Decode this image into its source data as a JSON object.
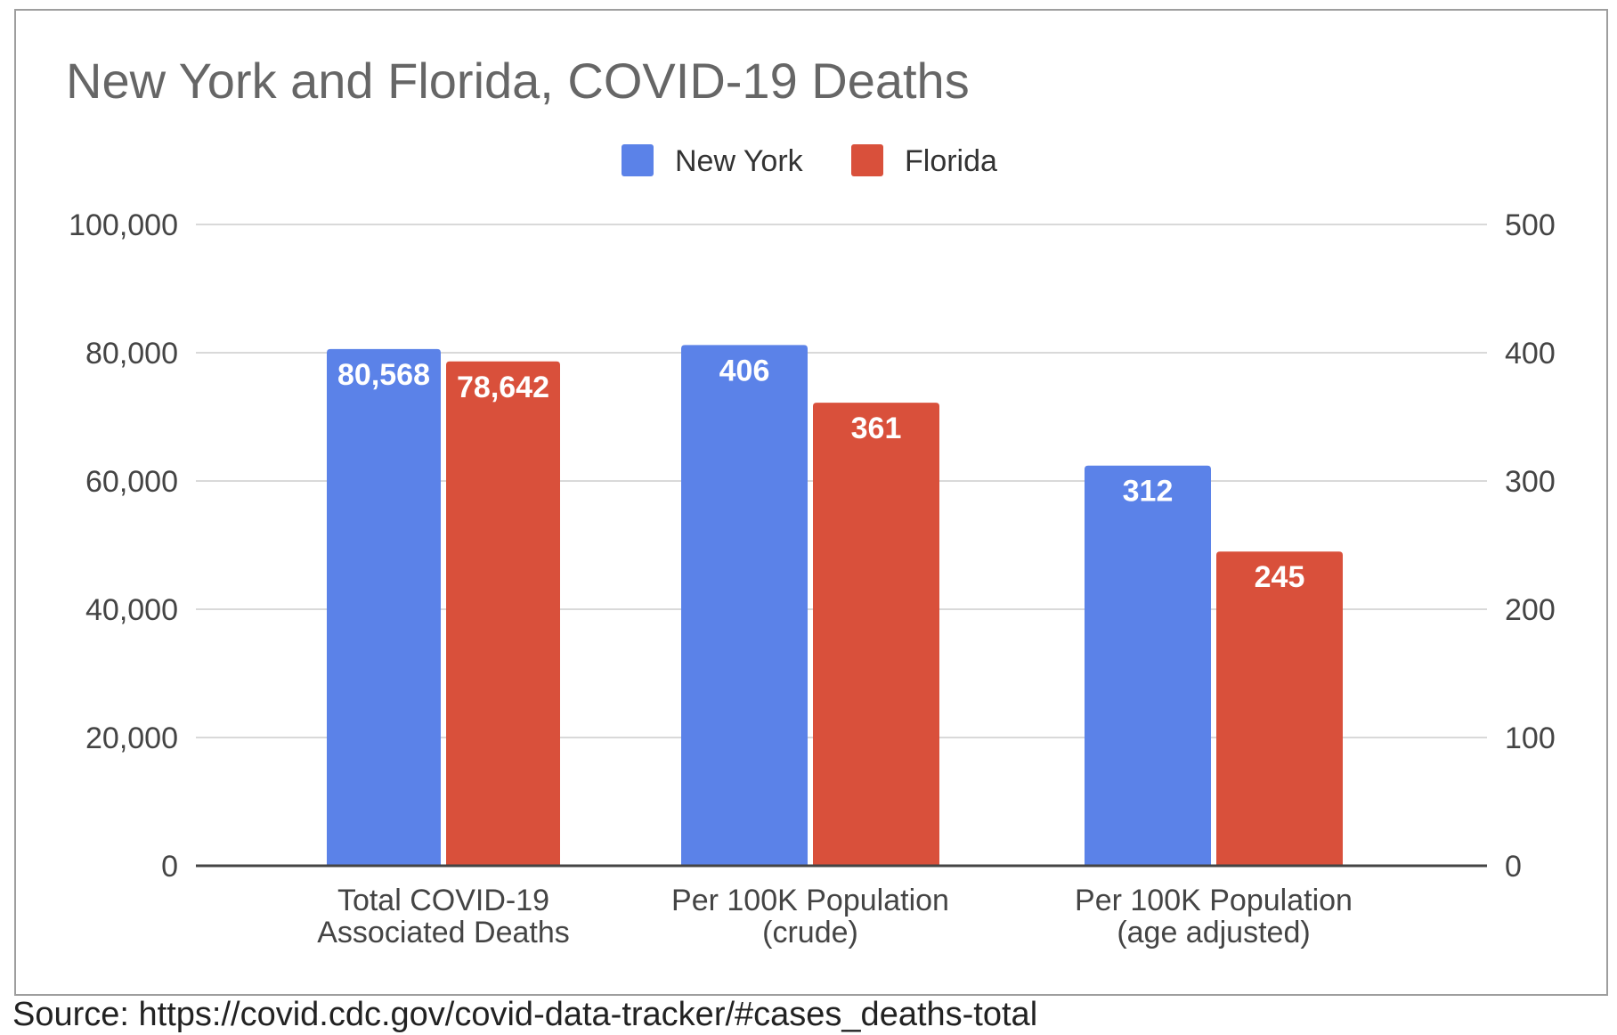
{
  "chart_data": {
    "type": "bar",
    "title": "New York and Florida, COVID-19 Deaths",
    "categories": [
      [
        "Total COVID-19",
        "Associated Deaths"
      ],
      [
        "Per 100K Population",
        "(crude)"
      ],
      [
        "Per 100K Population",
        "(age adjusted)"
      ]
    ],
    "series": [
      {
        "name": "New York",
        "color": "#5b82e8",
        "values": [
          80568,
          406,
          312
        ],
        "labels": [
          "80,568",
          "406",
          "312"
        ],
        "axis": [
          "left",
          "right",
          "right"
        ]
      },
      {
        "name": "Florida",
        "color": "#d9503b",
        "values": [
          78642,
          361,
          245
        ],
        "labels": [
          "78,642",
          "361",
          "245"
        ],
        "axis": [
          "left",
          "right",
          "right"
        ]
      }
    ],
    "y_left": {
      "min": 0,
      "max": 100000,
      "ticks": [
        "0",
        "20,000",
        "40,000",
        "60,000",
        "80,000",
        "100,000"
      ]
    },
    "y_right": {
      "min": 0,
      "max": 500,
      "ticks": [
        "0",
        "100",
        "200",
        "300",
        "400",
        "500"
      ]
    },
    "legend_position": "top-center",
    "grid": true
  },
  "source": "Source: https://covid.cdc.gov/covid-data-tracker/#cases_deaths-total"
}
